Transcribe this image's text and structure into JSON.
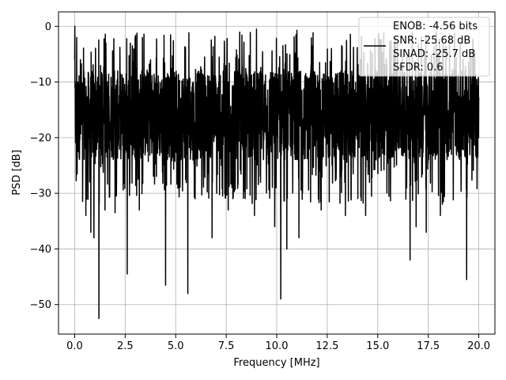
{
  "chart_data": {
    "type": "line",
    "title": "",
    "xlabel": "Frequency [MHz]",
    "ylabel": "PSD [dB]",
    "xlim": [
      -0.8,
      20.8
    ],
    "ylim": [
      -55.3,
      2.6
    ],
    "xticks": [
      0.0,
      2.5,
      5.0,
      7.5,
      10.0,
      12.5,
      15.0,
      17.5,
      20.0
    ],
    "xtick_labels": [
      "0.0",
      "2.5",
      "5.0",
      "7.5",
      "10.0",
      "12.5",
      "15.0",
      "17.5",
      "20.0"
    ],
    "yticks": [
      0,
      -10,
      -20,
      -30,
      -40,
      -50
    ],
    "ytick_labels": [
      "0",
      "−10",
      "−20",
      "−30",
      "−40",
      "−50"
    ],
    "grid": true,
    "legend_position": "top-right",
    "series": [
      {
        "name": "",
        "color": "#000000",
        "x_start": 0.0,
        "x_end": 20.0,
        "noise_floor_band": [
          -30,
          -8
        ],
        "peaks": [
          {
            "x": 0.0,
            "y": 0.0
          },
          {
            "x": 0.1,
            "y": -2.0
          },
          {
            "x": 9.0,
            "y": -0.5
          },
          {
            "x": 11.0,
            "y": -0.7
          },
          {
            "x": 15.3,
            "y": -1.2
          }
        ],
        "dips": [
          {
            "x": 0.55,
            "y": -34
          },
          {
            "x": 0.8,
            "y": -37
          },
          {
            "x": 0.95,
            "y": -38
          },
          {
            "x": 1.2,
            "y": -52.5
          },
          {
            "x": 1.5,
            "y": -33
          },
          {
            "x": 2.0,
            "y": -33.5
          },
          {
            "x": 2.6,
            "y": -44.5
          },
          {
            "x": 3.2,
            "y": -33
          },
          {
            "x": 4.5,
            "y": -46.5
          },
          {
            "x": 5.6,
            "y": -48
          },
          {
            "x": 6.8,
            "y": -38
          },
          {
            "x": 7.6,
            "y": -33
          },
          {
            "x": 8.9,
            "y": -34
          },
          {
            "x": 9.9,
            "y": -36
          },
          {
            "x": 10.2,
            "y": -49
          },
          {
            "x": 10.5,
            "y": -40
          },
          {
            "x": 11.1,
            "y": -38
          },
          {
            "x": 12.2,
            "y": -33
          },
          {
            "x": 13.4,
            "y": -34
          },
          {
            "x": 14.4,
            "y": -34
          },
          {
            "x": 16.6,
            "y": -42
          },
          {
            "x": 16.9,
            "y": -36
          },
          {
            "x": 17.4,
            "y": -37
          },
          {
            "x": 18.1,
            "y": -34
          },
          {
            "x": 19.4,
            "y": -45.5
          }
        ]
      }
    ],
    "legend": {
      "lines": [
        "ENOB: -4.56 bits",
        "SNR: -25.68 dB",
        "SINAD: -25.7 dB",
        "SFDR: 0.6"
      ]
    }
  }
}
